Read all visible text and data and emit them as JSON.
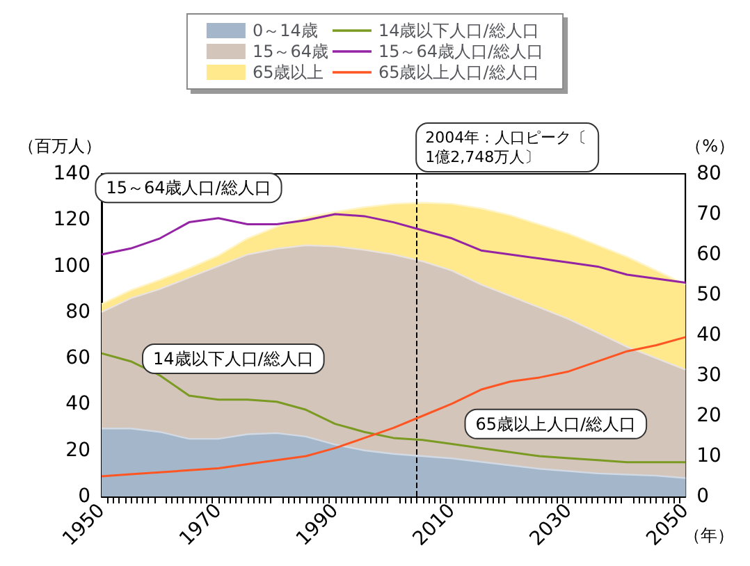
{
  "chart_data": {
    "type": "area",
    "stacked": true,
    "x": [
      1950,
      1955,
      1960,
      1965,
      1970,
      1975,
      1980,
      1985,
      1990,
      1995,
      2000,
      2005,
      2010,
      2015,
      2020,
      2025,
      2030,
      2035,
      2040,
      2045,
      2050
    ],
    "xlim": [
      1950,
      2050
    ],
    "xticks": [
      1950,
      1970,
      1990,
      2010,
      2030,
      2050
    ],
    "ylim": [
      0,
      140
    ],
    "yticks": [
      0,
      20,
      40,
      60,
      80,
      100,
      120,
      140
    ],
    "y2lim": [
      0,
      80
    ],
    "y2ticks": [
      0,
      10,
      20,
      30,
      40,
      50,
      60,
      70,
      80
    ],
    "xlabel": "（年）",
    "ylabel": "（百万人）",
    "y2label": "（%）",
    "legend": "top",
    "grid": false,
    "series": [
      {
        "name": "0～14歳",
        "color": "#a4b6c9",
        "values": [
          29.5,
          29.5,
          28,
          25,
          25,
          27,
          27.5,
          26,
          22.5,
          20,
          18.5,
          17.5,
          16.5,
          15,
          13.5,
          12,
          11,
          10,
          9.5,
          9,
          8
        ]
      },
      {
        "name": "15～64歳",
        "color": "#d4c5bb",
        "values": [
          50.5,
          56.5,
          62,
          70,
          75,
          78,
          80,
          83,
          86,
          87,
          86.5,
          84.5,
          81.5,
          77,
          73.5,
          70,
          66,
          61,
          55.5,
          51,
          47
        ]
      },
      {
        "name": "65歳以上",
        "color": "#ffe98c",
        "values": [
          3.5,
          3.5,
          4,
          4,
          4.5,
          7,
          9.5,
          12,
          15,
          18.5,
          22,
          25.5,
          29,
          33,
          35,
          36,
          37,
          38,
          39,
          38,
          37
        ]
      },
      {
        "name": "14歳以下人口/総人口",
        "type": "line",
        "axis": "y2",
        "color": "#7a9a22",
        "values": [
          35.5,
          33.5,
          30,
          25,
          24,
          24,
          23.5,
          21.5,
          18,
          16,
          14.5,
          14,
          13,
          12,
          11,
          10,
          9.5,
          9,
          8.5,
          8.5,
          8.5
        ]
      },
      {
        "name": "15～64歳人口/総人口",
        "type": "line",
        "axis": "y2",
        "color": "#9424a4",
        "values": [
          60,
          61.5,
          64,
          68,
          69,
          67.5,
          67.5,
          68.5,
          70,
          69.5,
          68,
          66,
          64,
          61,
          60,
          59,
          58,
          57,
          55,
          54,
          53
        ]
      },
      {
        "name": "65歳以上人口/総人口",
        "type": "line",
        "axis": "y2",
        "color": "#ff5522",
        "values": [
          5,
          5.5,
          6,
          6.5,
          7,
          8,
          9,
          10,
          12,
          14.5,
          17,
          20,
          23,
          26.5,
          28.5,
          29.5,
          31,
          33.5,
          36,
          37.5,
          39.5
        ]
      }
    ],
    "ref_lines": [
      {
        "axis": "x",
        "value": 2004,
        "label": "2004年：人口ピーク〔1億2,748万人〕",
        "line_style": "dashed"
      }
    ],
    "annotations": [
      {
        "text": "15～64歳人口/総人口",
        "x": 1978,
        "y": 117
      },
      "14歳以下人口/総人口",
      {
        "text": "65歳以上人口/総人口",
        "x": 2010,
        "y": 43.5
      }
    ]
  }
}
